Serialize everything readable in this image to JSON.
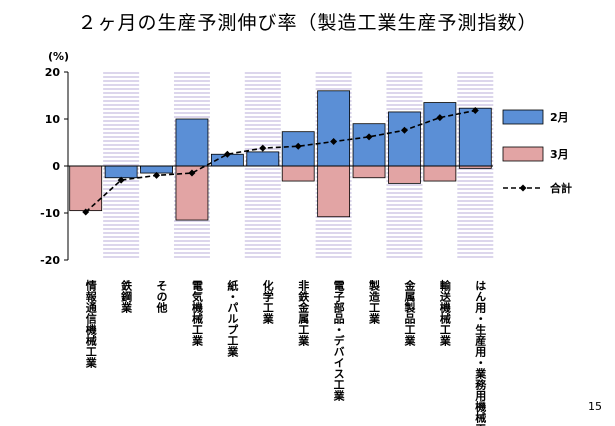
{
  "page": {
    "title": "２ヶ月の生産予測伸び率（製造工業生産予測指数）",
    "page_number": "15"
  },
  "colors": {
    "feb_fill": "#5b8fd6",
    "mar_fill": "#e2a4a4",
    "total_line": "#000000",
    "shade": "#dcd6ec"
  },
  "chart_data": {
    "type": "bar",
    "ylabel": "(%)",
    "ylim": [
      -20,
      20
    ],
    "yticks": [
      20,
      10,
      0,
      -10,
      -20
    ],
    "grid": false,
    "legend_position": "right",
    "categories": [
      "情報通信機械工業",
      "鉄鋼業",
      "その他",
      "電気機械工業",
      "紙・パルプ工業",
      "化学工業",
      "非鉄金属工業",
      "電子部品・デバイス工業",
      "製造工業",
      "金属製品工業",
      "輸送機械工業",
      "はん用・生産用・業務用機械工業"
    ],
    "series": [
      {
        "name": "2月",
        "type": "bar",
        "values": [
          0,
          -2.5,
          -1.5,
          10,
          2.5,
          3,
          7.3,
          16,
          9,
          11.5,
          13.5,
          12.3
        ]
      },
      {
        "name": "3月",
        "type": "bar",
        "values": [
          -9.5,
          -0.5,
          -0.5,
          -11.5,
          0,
          1.5,
          -3.2,
          -10.8,
          -2.5,
          -3.7,
          -3.2,
          -0.5
        ]
      },
      {
        "name": "合計",
        "type": "line",
        "values": [
          -9.8,
          -3,
          -2,
          -1.5,
          2.5,
          3.8,
          4.2,
          5.2,
          6.2,
          7.6,
          10.3,
          11.8
        ]
      }
    ]
  }
}
